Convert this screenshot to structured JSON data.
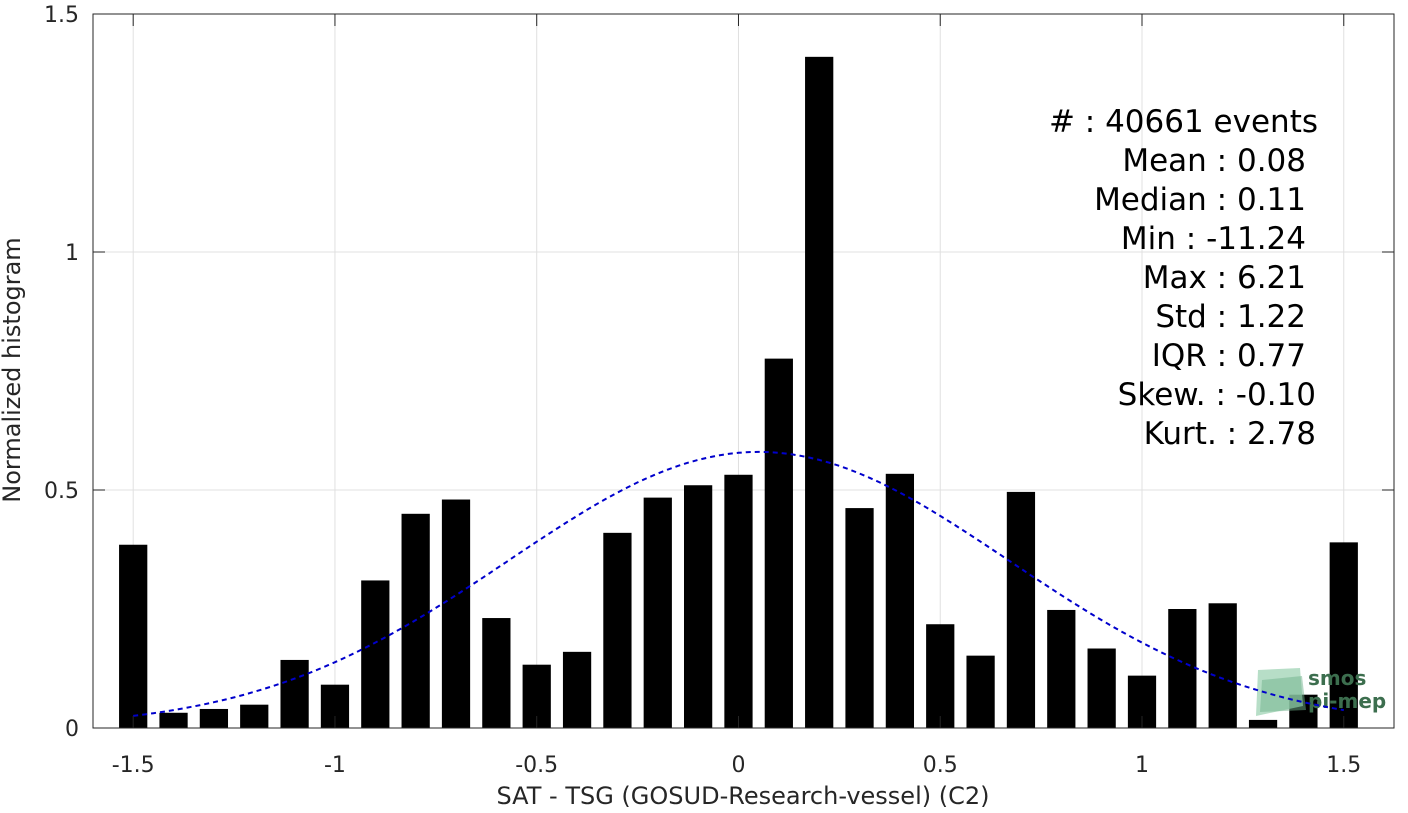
{
  "chart_data": {
    "type": "bar",
    "xlabel": "SAT - TSG (GOSUD-Research-vessel) (C2)",
    "ylabel": "Normalized histogram",
    "xlim": [
      -1.5996,
      1.6245
    ],
    "ylim": [
      0,
      1.5
    ],
    "xticks": [
      -1.5,
      -1,
      -0.5,
      0,
      0.5,
      1,
      1.5
    ],
    "xtick_labels": [
      "-1.5",
      "-1",
      "-0.5",
      "0",
      "0.5",
      "1",
      "1.5"
    ],
    "yticks": [
      0,
      0.5,
      1,
      1.5
    ],
    "ytick_labels": [
      "0",
      "0.5",
      "1",
      "1.5"
    ],
    "grid": true,
    "bar_width": 0.07,
    "series": [
      {
        "x": [
          -1.5,
          -1.4,
          -1.3,
          -1.2,
          -1.1,
          -1.0,
          -0.9,
          -0.8,
          -0.7,
          -0.6,
          -0.5,
          -0.4,
          -0.3,
          -0.2,
          -0.1,
          0.0,
          0.1,
          0.2,
          0.3,
          0.4,
          0.5,
          0.6,
          0.7,
          0.8,
          0.9,
          1.0,
          1.1,
          1.2,
          1.3,
          1.4,
          1.5
        ],
        "values": [
          0.385,
          0.032,
          0.04,
          0.049,
          0.143,
          0.091,
          0.31,
          0.45,
          0.48,
          0.231,
          0.133,
          0.16,
          0.41,
          0.484,
          0.51,
          0.532,
          0.776,
          1.41,
          0.462,
          0.534,
          0.218,
          0.152,
          0.496,
          0.248,
          0.167,
          0.11,
          0.25,
          0.262,
          0.017,
          0.07,
          0.39
        ],
        "color": "#000000"
      }
    ],
    "fit_curve": {
      "style": "dashed",
      "color": "#0000cc",
      "mean": 0.05,
      "std": 0.62,
      "peak": 0.58,
      "x_range": [
        -1.5,
        1.5
      ]
    },
    "stats": {
      "lines": [
        "#  : 40661 events",
        "Mean : 0.08",
        "Median : 0.11",
        "Min : -11.24",
        "Max : 6.21",
        "Std : 1.22",
        "IQR : 0.77",
        "Skew. : -0.10",
        "Kurt. : 2.78"
      ]
    },
    "logo": {
      "line1": "smos",
      "line2": "pi-mep",
      "colors": [
        "#9fd3b4",
        "#3c6e4e"
      ]
    }
  }
}
